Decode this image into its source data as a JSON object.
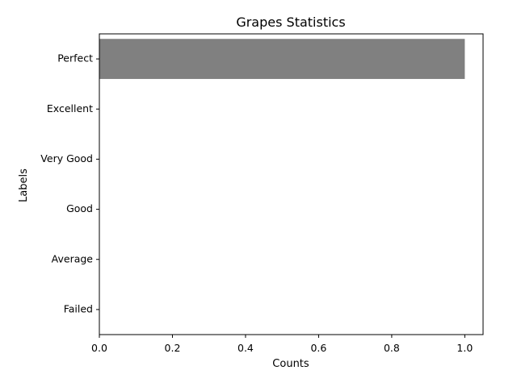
{
  "chart_data": {
    "type": "bar",
    "orientation": "horizontal",
    "title": "Grapes Statistics",
    "xlabel": "Counts",
    "ylabel": "Labels",
    "categories": [
      "Perfect",
      "Excellent",
      "Very Good",
      "Good",
      "Average",
      "Failed"
    ],
    "values": [
      1,
      0,
      0,
      0,
      0,
      0
    ],
    "xlim": [
      0,
      1.05
    ],
    "xticks": [
      "0.0",
      "0.2",
      "0.4",
      "0.6",
      "0.8",
      "1.0"
    ],
    "grid": false,
    "legend": "none",
    "bar_color": "#808080"
  }
}
